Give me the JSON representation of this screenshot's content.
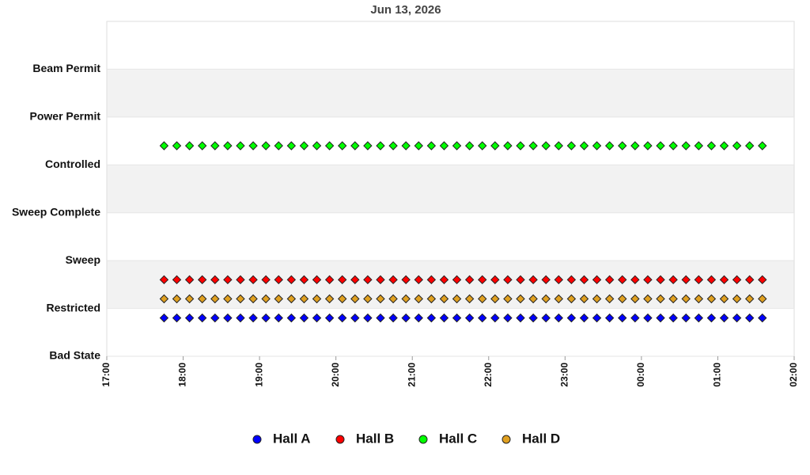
{
  "chart_data": {
    "type": "scatter",
    "title": "Jun 13, 2026",
    "x": [
      "17:45",
      "17:55",
      "18:05",
      "18:15",
      "18:25",
      "18:35",
      "18:45",
      "18:55",
      "19:05",
      "19:15",
      "19:25",
      "19:35",
      "19:45",
      "19:55",
      "20:05",
      "20:15",
      "20:25",
      "20:35",
      "20:45",
      "20:55",
      "21:05",
      "21:15",
      "21:25",
      "21:35",
      "21:45",
      "21:55",
      "22:05",
      "22:15",
      "22:25",
      "22:35",
      "22:45",
      "22:55",
      "23:05",
      "23:15",
      "23:25",
      "23:35",
      "23:45",
      "23:55",
      "00:05",
      "00:15",
      "00:25",
      "00:35",
      "00:45",
      "00:55",
      "01:05",
      "01:15",
      "01:25",
      "01:35"
    ],
    "xlim": [
      "17:00",
      "02:00"
    ],
    "xticks": [
      "17:00",
      "18:00",
      "19:00",
      "20:00",
      "21:00",
      "22:00",
      "23:00",
      "00:00",
      "01:00",
      "02:00"
    ],
    "ylim": [
      0,
      7
    ],
    "yticks": [
      {
        "value": 0,
        "label": "Bad State"
      },
      {
        "value": 1,
        "label": "Restricted"
      },
      {
        "value": 2,
        "label": "Sweep"
      },
      {
        "value": 3,
        "label": "Sweep Complete"
      },
      {
        "value": 4,
        "label": "Controlled"
      },
      {
        "value": 5,
        "label": "Power Permit"
      },
      {
        "value": 6,
        "label": "Beam Permit"
      }
    ],
    "series": [
      {
        "name": "Hall A",
        "color": "#0000ff",
        "values": [
          0.8,
          0.8,
          0.8,
          0.8,
          0.8,
          0.8,
          0.8,
          0.8,
          0.8,
          0.8,
          0.8,
          0.8,
          0.8,
          0.8,
          0.8,
          0.8,
          0.8,
          0.8,
          0.8,
          0.8,
          0.8,
          0.8,
          0.8,
          0.8,
          0.8,
          0.8,
          0.8,
          0.8,
          0.8,
          0.8,
          0.8,
          0.8,
          0.8,
          0.8,
          0.8,
          0.8,
          0.8,
          0.8,
          0.8,
          0.8,
          0.8,
          0.8,
          0.8,
          0.8,
          0.8,
          0.8,
          0.8,
          0.8
        ]
      },
      {
        "name": "Hall B",
        "color": "#ff0000",
        "values": [
          1.6,
          1.6,
          1.6,
          1.6,
          1.6,
          1.6,
          1.6,
          1.6,
          1.6,
          1.6,
          1.6,
          1.6,
          1.6,
          1.6,
          1.6,
          1.6,
          1.6,
          1.6,
          1.6,
          1.6,
          1.6,
          1.6,
          1.6,
          1.6,
          1.6,
          1.6,
          1.6,
          1.6,
          1.6,
          1.6,
          1.6,
          1.6,
          1.6,
          1.6,
          1.6,
          1.6,
          1.6,
          1.6,
          1.6,
          1.6,
          1.6,
          1.6,
          1.6,
          1.6,
          1.6,
          1.6,
          1.6,
          1.6
        ]
      },
      {
        "name": "Hall C",
        "color": "#00ff00",
        "values": [
          4.4,
          4.4,
          4.4,
          4.4,
          4.4,
          4.4,
          4.4,
          4.4,
          4.4,
          4.4,
          4.4,
          4.4,
          4.4,
          4.4,
          4.4,
          4.4,
          4.4,
          4.4,
          4.4,
          4.4,
          4.4,
          4.4,
          4.4,
          4.4,
          4.4,
          4.4,
          4.4,
          4.4,
          4.4,
          4.4,
          4.4,
          4.4,
          4.4,
          4.4,
          4.4,
          4.4,
          4.4,
          4.4,
          4.4,
          4.4,
          4.4,
          4.4,
          4.4,
          4.4,
          4.4,
          4.4,
          4.4,
          4.4
        ]
      },
      {
        "name": "Hall D",
        "color": "#e0a020",
        "values": [
          1.2,
          1.2,
          1.2,
          1.2,
          1.2,
          1.2,
          1.2,
          1.2,
          1.2,
          1.2,
          1.2,
          1.2,
          1.2,
          1.2,
          1.2,
          1.2,
          1.2,
          1.2,
          1.2,
          1.2,
          1.2,
          1.2,
          1.2,
          1.2,
          1.2,
          1.2,
          1.2,
          1.2,
          1.2,
          1.2,
          1.2,
          1.2,
          1.2,
          1.2,
          1.2,
          1.2,
          1.2,
          1.2,
          1.2,
          1.2,
          1.2,
          1.2,
          1.2,
          1.2,
          1.2,
          1.2,
          1.2,
          1.2
        ]
      }
    ]
  }
}
